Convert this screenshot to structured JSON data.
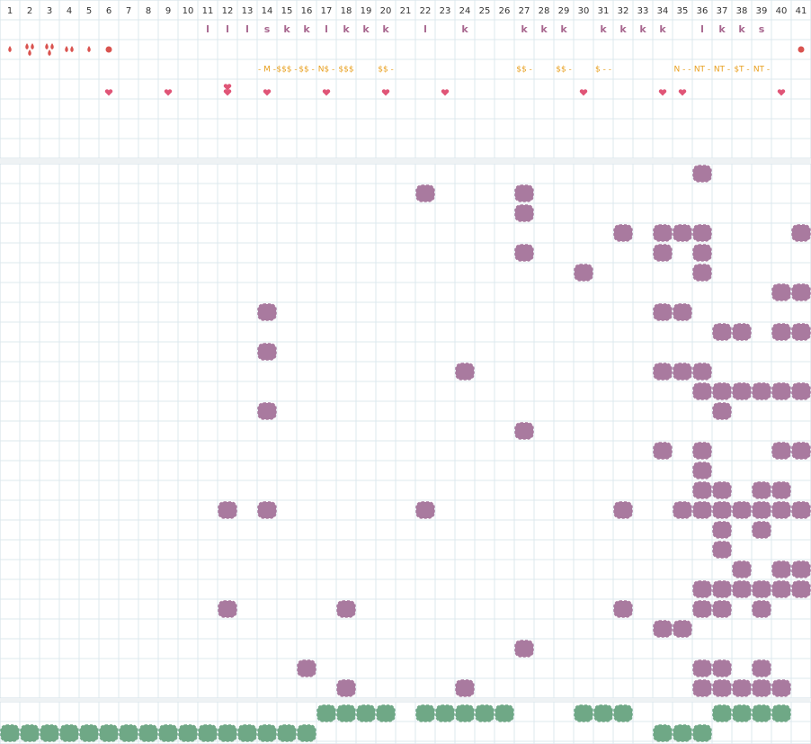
{
  "header": {
    "columns": [
      1,
      2,
      3,
      4,
      5,
      6,
      7,
      8,
      9,
      10,
      11,
      12,
      13,
      14,
      15,
      16,
      17,
      18,
      19,
      20,
      21,
      22,
      23,
      24,
      25,
      26,
      27,
      28,
      29,
      30,
      31,
      32,
      33,
      34,
      35,
      36,
      37,
      38,
      39,
      40,
      41
    ]
  },
  "top": {
    "letters": [
      {
        "col": 11,
        "text": "l"
      },
      {
        "col": 12,
        "text": "l"
      },
      {
        "col": 13,
        "text": "l"
      },
      {
        "col": 14,
        "text": "s"
      },
      {
        "col": 15,
        "text": "k"
      },
      {
        "col": 16,
        "text": "k"
      },
      {
        "col": 17,
        "text": "l"
      },
      {
        "col": 18,
        "text": "k"
      },
      {
        "col": 19,
        "text": "k"
      },
      {
        "col": 20,
        "text": "k"
      },
      {
        "col": 22,
        "text": "l"
      },
      {
        "col": 24,
        "text": "k"
      },
      {
        "col": 27,
        "text": "k"
      },
      {
        "col": 28,
        "text": "k"
      },
      {
        "col": 29,
        "text": "k"
      },
      {
        "col": 31,
        "text": "k"
      },
      {
        "col": 32,
        "text": "k"
      },
      {
        "col": 33,
        "text": "k"
      },
      {
        "col": 34,
        "text": "k"
      },
      {
        "col": 36,
        "text": "l"
      },
      {
        "col": 37,
        "text": "k"
      },
      {
        "col": 38,
        "text": "k"
      },
      {
        "col": 39,
        "text": "s"
      }
    ],
    "drops": [
      {
        "col": 1,
        "count": 1
      },
      {
        "col": 2,
        "count": 3
      },
      {
        "col": 3,
        "count": 3
      },
      {
        "col": 4,
        "count": 2
      },
      {
        "col": 5,
        "count": 1
      }
    ],
    "dots": [
      6,
      41
    ],
    "tags": [
      {
        "col": 14,
        "text": "- M -"
      },
      {
        "col": 15,
        "text": "$$$ -"
      },
      {
        "col": 16,
        "text": "$$ -"
      },
      {
        "col": 17,
        "text": "N$ -"
      },
      {
        "col": 18,
        "text": "$$$"
      },
      {
        "col": 20,
        "text": "$$ -"
      },
      {
        "col": 27,
        "text": "$$ -"
      },
      {
        "col": 29,
        "text": "$$ -"
      },
      {
        "col": 31,
        "text": "$ - -"
      },
      {
        "col": 35,
        "text": "N - -"
      },
      {
        "col": 36,
        "text": "NT -"
      },
      {
        "col": 37,
        "text": "NT -"
      },
      {
        "col": 38,
        "text": "$T -"
      },
      {
        "col": 39,
        "text": "NT -"
      }
    ],
    "hearts": [
      {
        "col": 6,
        "count": 1
      },
      {
        "col": 9,
        "count": 1
      },
      {
        "col": 12,
        "count": 2
      },
      {
        "col": 14,
        "count": 1
      },
      {
        "col": 17,
        "count": 1
      },
      {
        "col": 20,
        "count": 1
      },
      {
        "col": 23,
        "count": 1
      },
      {
        "col": 30,
        "count": 1
      },
      {
        "col": 34,
        "count": 1
      },
      {
        "col": 35,
        "count": 1
      },
      {
        "col": 40,
        "count": 1
      }
    ]
  },
  "main": {
    "rows": [
      [
        36
      ],
      [
        22,
        27
      ],
      [
        27
      ],
      [
        32,
        34,
        35,
        36,
        41
      ],
      [
        27,
        34,
        36
      ],
      [
        30,
        36
      ],
      [
        40,
        41
      ],
      [
        14,
        34,
        35
      ],
      [
        37,
        38,
        40,
        41
      ],
      [
        14
      ],
      [
        24,
        34,
        35,
        36
      ],
      [
        36,
        37,
        38,
        39,
        40,
        41
      ],
      [
        14,
        37
      ],
      [
        27
      ],
      [
        34,
        36,
        40,
        41
      ],
      [
        36
      ],
      [
        36,
        37,
        39,
        40
      ],
      [
        12,
        14,
        22,
        32,
        35,
        36,
        37,
        38,
        39,
        40,
        41
      ],
      [
        37,
        39
      ],
      [
        37
      ],
      [
        38,
        40,
        41
      ],
      [
        36,
        37,
        38,
        39,
        40,
        41
      ],
      [
        12,
        18,
        32,
        36,
        37,
        39
      ],
      [
        34,
        35
      ],
      [
        27
      ],
      [
        16,
        36,
        37,
        39
      ],
      [
        18,
        24,
        36,
        37,
        38,
        39,
        40
      ]
    ]
  },
  "bottom": {
    "rows": [
      [
        17,
        18,
        19,
        20,
        22,
        23,
        24,
        25,
        26,
        30,
        31,
        32,
        37,
        38,
        39,
        40
      ],
      [
        1,
        2,
        3,
        4,
        5,
        6,
        7,
        8,
        9,
        10,
        11,
        12,
        13,
        14,
        15,
        16,
        34,
        35,
        36
      ]
    ]
  }
}
